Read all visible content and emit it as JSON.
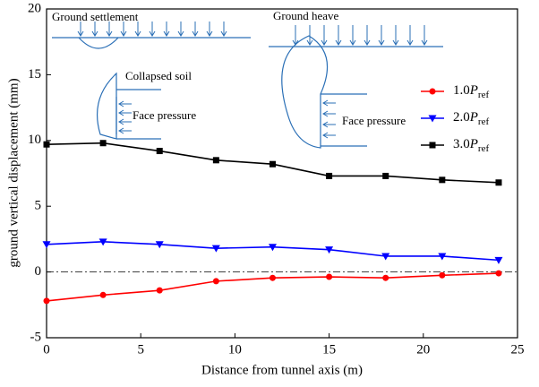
{
  "chart_data": {
    "type": "line",
    "x_label": "Distance from tunnel axis (m)",
    "y_label": "ground vertical displacement (mm)",
    "x": [
      0,
      3,
      6,
      9,
      12,
      15,
      18,
      21,
      24
    ],
    "series": [
      {
        "name": "1.0Pref",
        "color": "#ff0000",
        "marker": "circle",
        "values": [
          -2.2,
          -1.75,
          -1.4,
          -0.7,
          -0.45,
          -0.37,
          -0.45,
          -0.25,
          -0.1
        ]
      },
      {
        "name": "2.0Pref",
        "color": "#0000ff",
        "marker": "triangle-down",
        "values": [
          2.1,
          2.3,
          2.1,
          1.8,
          1.9,
          1.7,
          1.2,
          1.2,
          0.9
        ]
      },
      {
        "name": "3.0Pref",
        "color": "#000000",
        "marker": "square",
        "values": [
          9.7,
          9.8,
          9.2,
          8.5,
          8.2,
          7.3,
          7.3,
          7.0,
          6.8
        ]
      }
    ],
    "xlim": [
      0,
      25
    ],
    "xticks": [
      0,
      5,
      10,
      15,
      20,
      25
    ],
    "ylim": [
      -5,
      20
    ],
    "yticks": [
      -5,
      0,
      5,
      10,
      15,
      20
    ],
    "legend": "right",
    "annotations": [
      "Ground settlement",
      "Ground heave",
      "Collapsed soil",
      "Face pressure",
      "Face pressure"
    ]
  }
}
